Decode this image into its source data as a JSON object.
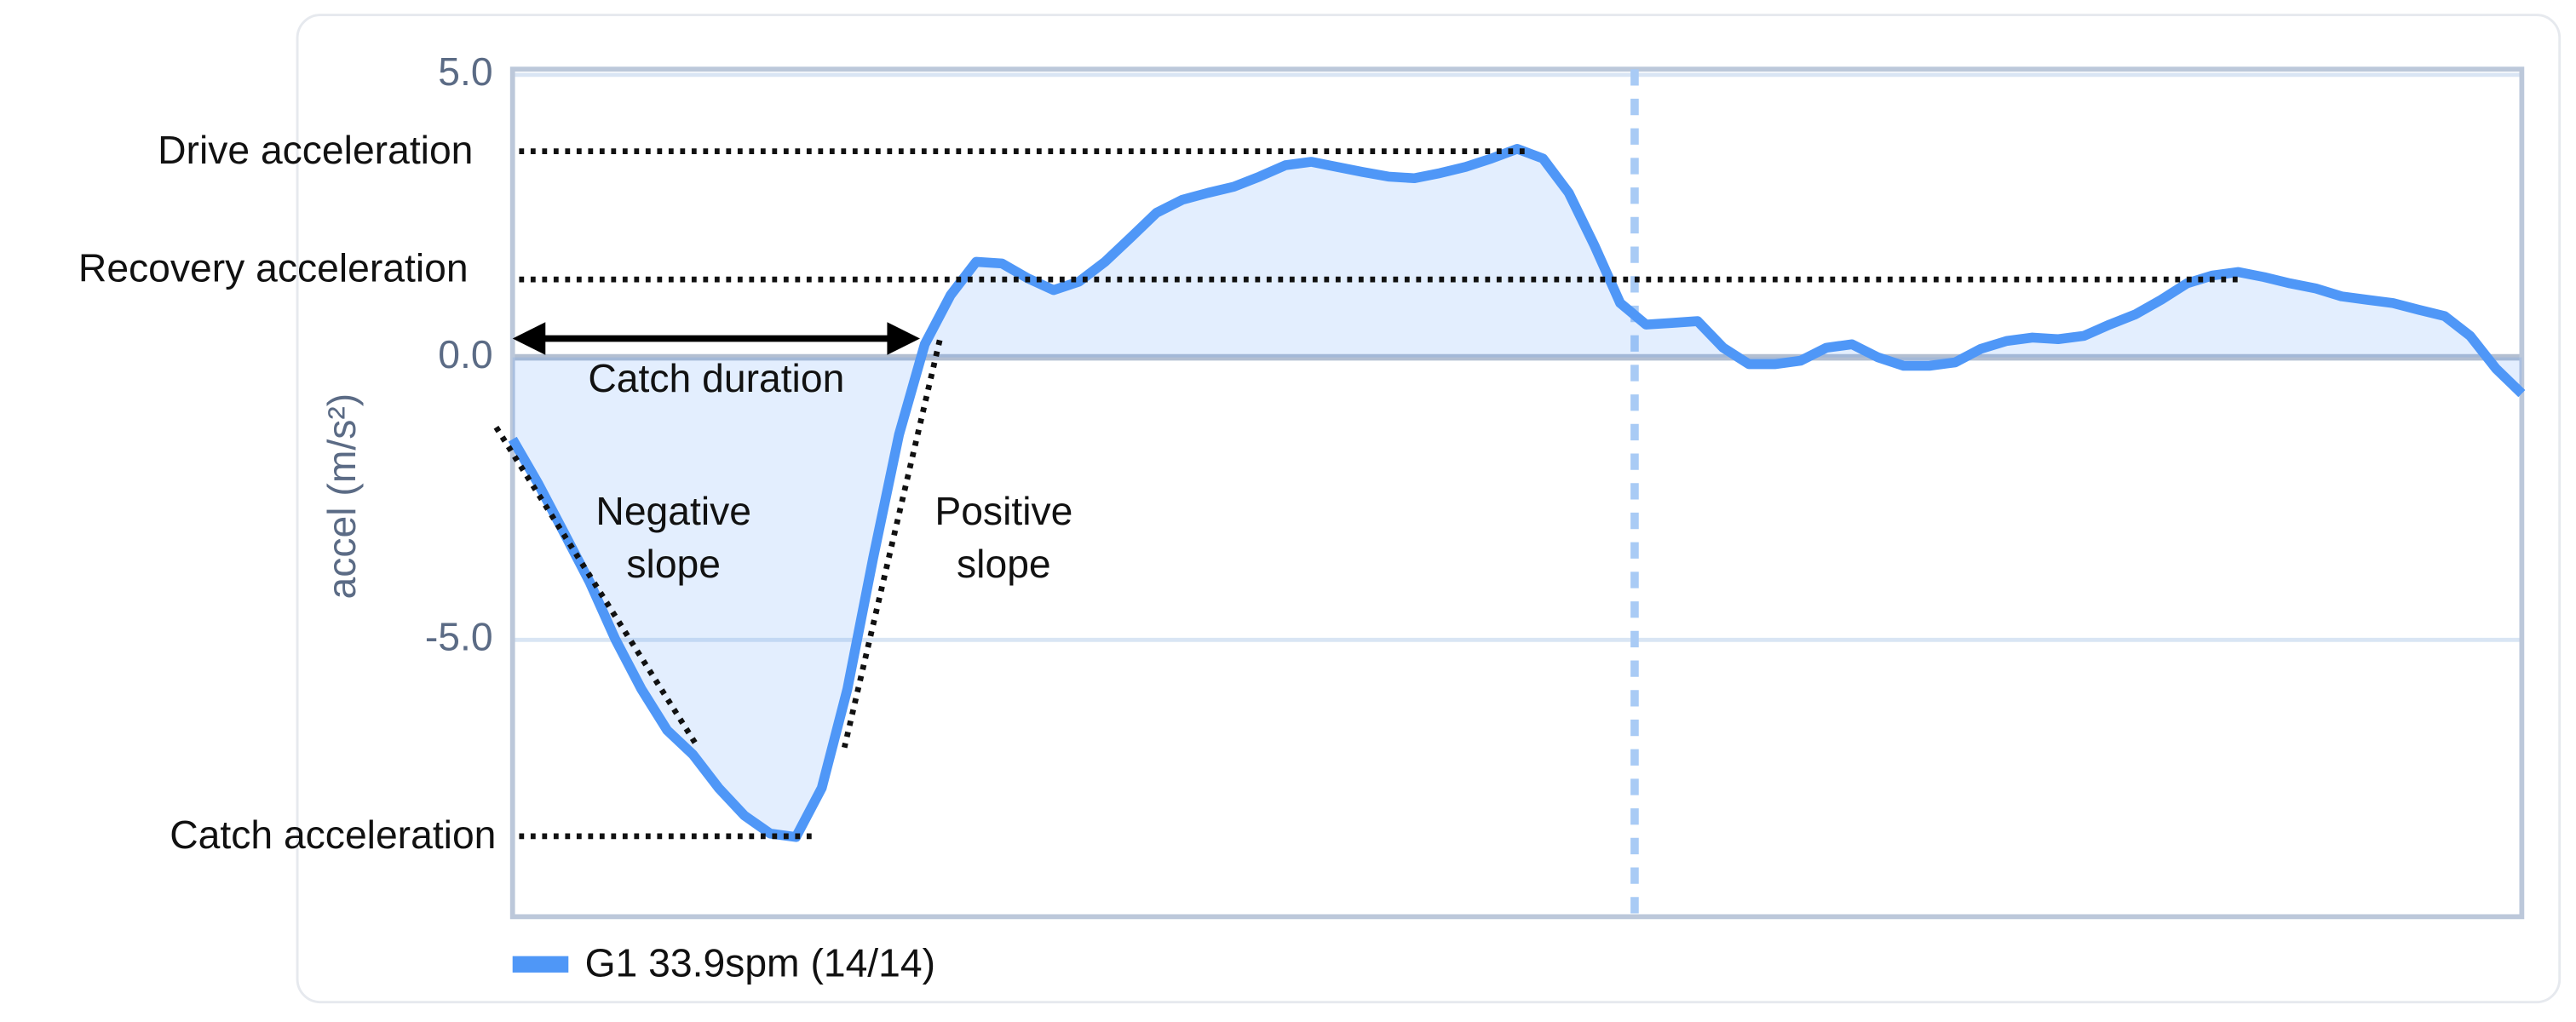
{
  "chart_data": {
    "type": "line",
    "y_label": "accel (m/s²)",
    "ylim": [
      -9.9,
      5.1
    ],
    "yticks": [
      {
        "value": 5,
        "label": "5.0"
      },
      {
        "value": 0,
        "label": "0.0"
      },
      {
        "value": -5,
        "label": "-5.0"
      }
    ],
    "grid": true,
    "legend": "bottom-left",
    "series": [
      {
        "name": "G1 33.9spm (14/14)",
        "color": "#4f97f7",
        "values": [
          -1.45,
          -2.24,
          -3.11,
          -3.98,
          -5.0,
          -5.87,
          -6.6,
          -7.03,
          -7.62,
          -8.11,
          -8.43,
          -8.49,
          -7.62,
          -5.87,
          -3.55,
          -1.37,
          0.23,
          1.1,
          1.69,
          1.66,
          1.4,
          1.19,
          1.34,
          1.69,
          2.12,
          2.56,
          2.79,
          2.91,
          3.02,
          3.2,
          3.4,
          3.46,
          3.37,
          3.28,
          3.2,
          3.17,
          3.26,
          3.37,
          3.52,
          3.69,
          3.52,
          2.91,
          1.98,
          0.96,
          0.58,
          0.61,
          0.64,
          0.17,
          -0.12,
          -0.12,
          -0.06,
          0.17,
          0.23,
          0.0,
          -0.15,
          -0.15,
          -0.09,
          0.15,
          0.29,
          0.35,
          0.32,
          0.38,
          0.58,
          0.76,
          1.02,
          1.31,
          1.45,
          1.51,
          1.42,
          1.31,
          1.22,
          1.08,
          1.02,
          0.96,
          0.84,
          0.73,
          0.38,
          -0.2,
          -0.64
        ]
      }
    ],
    "annotations": {
      "drive": "Drive acceleration",
      "recovery": "Recovery acceleration",
      "catch_duration": "Catch duration",
      "negative_slope": [
        "Negative",
        "slope"
      ],
      "positive_slope": [
        "Positive",
        "slope"
      ],
      "catch": "Catch acceleration"
    }
  }
}
